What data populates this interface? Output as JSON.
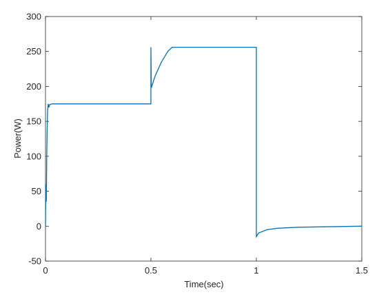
{
  "chart_data": {
    "type": "line",
    "xlabel": "Time(sec)",
    "ylabel": "Power(W)",
    "xlim": [
      0,
      1.5
    ],
    "ylim": [
      -50,
      300
    ],
    "xticks": [
      0,
      0.5,
      1,
      1.5
    ],
    "yticks": [
      -50,
      0,
      50,
      100,
      150,
      200,
      250,
      300
    ],
    "grid": false,
    "box": true,
    "series": [
      {
        "color": "#0072bd",
        "x": [
          0,
          0.002,
          0.004,
          0.006,
          0.008,
          0.01,
          0.013,
          0.016,
          0.02,
          0.03,
          0.5,
          0.5,
          0.502,
          0.52,
          0.55,
          0.58,
          0.6,
          1.0,
          1.0,
          1.01,
          1.05,
          1.1,
          1.2,
          1.3,
          1.5
        ],
        "values": [
          0,
          60,
          35,
          100,
          140,
          165,
          175,
          170,
          174,
          175,
          175,
          256,
          198,
          215,
          235,
          250,
          256,
          256,
          -15,
          -10,
          -5,
          -3,
          -1.5,
          -1,
          0
        ]
      }
    ]
  }
}
